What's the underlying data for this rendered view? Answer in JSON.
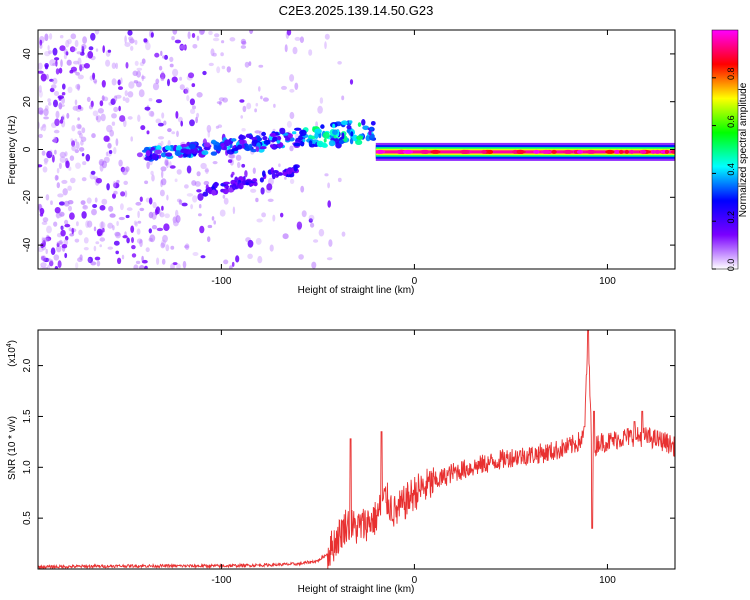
{
  "title": "C2E3.2025.139.14.50.G23",
  "chart_data": [
    {
      "type": "heatmap",
      "xlabel": "Height of straight line (km)",
      "ylabel": "Frequency (Hz)",
      "xlim": [
        -195,
        135
      ],
      "ylim": [
        -50,
        50
      ],
      "xticks": [
        -100,
        0,
        100
      ],
      "yticks": [
        -40,
        -20,
        0,
        20,
        40
      ],
      "colorbar": {
        "label": "Normalized spectral amplitude",
        "range": [
          0,
          1
        ],
        "ticks": [
          "0.0",
          "0.2",
          "0.4",
          "0.6",
          "0.8"
        ],
        "tick_values": [
          0,
          0.2,
          0.4,
          0.6,
          0.8
        ],
        "colormap": [
          "#ffffff",
          "#7a00ff",
          "#0000ff",
          "#00ffff",
          "#00ff00",
          "#ffff00",
          "#ff0000",
          "#ff00ff"
        ]
      },
      "features": [
        {
          "x_range": [
            -195,
            -60
          ],
          "y_range": [
            -50,
            50
          ],
          "amplitude": 0.12
        },
        {
          "x_range": [
            -140,
            -20
          ],
          "y_center_start": -2,
          "y_center_end": 8,
          "amplitude": 0.35
        },
        {
          "x_range": [
            -110,
            -60
          ],
          "y_center_start": -18,
          "y_center_end": -8,
          "amplitude": 0.25
        },
        {
          "x_range": [
            -20,
            135
          ],
          "y_center": -1,
          "amplitude": 0.95
        }
      ]
    },
    {
      "type": "line",
      "xlabel": "Height of straight line (km)",
      "ylabel": "SNR (10 * v/v)",
      "y_multiplier": "(x10",
      "y_multiplier_exp": "4",
      "y_multiplier_close": ")",
      "xlim": [
        -195,
        135
      ],
      "ylim": [
        0,
        2.35
      ],
      "xticks": [
        -100,
        0,
        100
      ],
      "yticks": [
        0.5,
        1.0,
        1.5,
        2.0
      ],
      "ytick_labels": [
        "0.5",
        "1.0",
        "1.5",
        "2.0"
      ],
      "color": "#e83030",
      "series": [
        {
          "x": [
            -195,
            -150,
            -100,
            -75,
            -60,
            -50,
            -45,
            -40,
            -35,
            -30,
            -25,
            -20,
            -15,
            -10,
            -5,
            0,
            5,
            10,
            20,
            30,
            40,
            50,
            60,
            70,
            80,
            85,
            88,
            90,
            92,
            95,
            100,
            110,
            120,
            130,
            135
          ],
          "values": [
            0.02,
            0.03,
            0.03,
            0.04,
            0.05,
            0.08,
            0.15,
            0.3,
            0.45,
            0.4,
            0.45,
            0.5,
            0.7,
            0.55,
            0.65,
            0.75,
            0.8,
            0.85,
            0.95,
            1.0,
            1.05,
            1.1,
            1.12,
            1.15,
            1.2,
            1.25,
            1.3,
            2.3,
            1.1,
            1.25,
            1.25,
            1.3,
            1.3,
            1.25,
            1.2
          ],
          "peaks": [
            [
              -33,
              1.28
            ],
            [
              -17,
              1.35
            ],
            [
              88,
              1.4
            ],
            [
              90,
              2.35
            ],
            [
              92,
              0.4
            ],
            [
              93,
              1.55
            ],
            [
              114,
              1.45
            ],
            [
              118,
              1.55
            ]
          ]
        }
      ]
    }
  ]
}
